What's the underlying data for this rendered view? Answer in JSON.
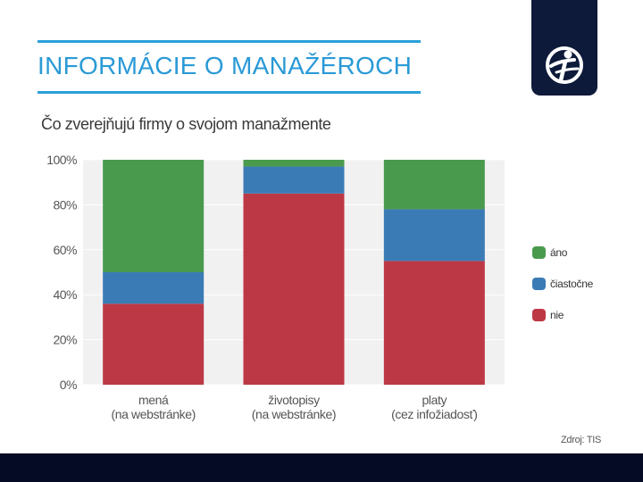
{
  "slide": {
    "title": "INFORMÁCIE O MANAŽÉROCH",
    "source": "Zdroj: TIS",
    "logo_icon": "globe-person-icon"
  },
  "colors": {
    "ano": "#4a9a4e",
    "ciastocne": "#3b7bb5",
    "nie": "#bd3845",
    "accent": "#29a0d8",
    "navy": "#0e1a3a"
  },
  "chart_data": {
    "type": "bar",
    "stacked": true,
    "title": "Čo zverejňujú firmy o svojom manažmente",
    "categories": [
      [
        "mená",
        "(na webstránke)"
      ],
      [
        "životopisy",
        "(na webstránke)"
      ],
      [
        "platy",
        "(cez infožiadosť)"
      ]
    ],
    "series": [
      {
        "name": "nie",
        "color": "#bd3845",
        "values": [
          36,
          85,
          55
        ]
      },
      {
        "name": "čiastočne",
        "color": "#3b7bb5",
        "values": [
          14,
          12,
          23
        ]
      },
      {
        "name": "áno",
        "color": "#4a9a4e",
        "values": [
          50,
          3,
          22
        ]
      }
    ],
    "legend_order": [
      "áno",
      "čiastočne",
      "nie"
    ],
    "ylim": [
      0,
      100
    ],
    "yticks": [
      "0%",
      "20%",
      "40%",
      "60%",
      "80%",
      "100%"
    ],
    "legend_position": "right"
  }
}
